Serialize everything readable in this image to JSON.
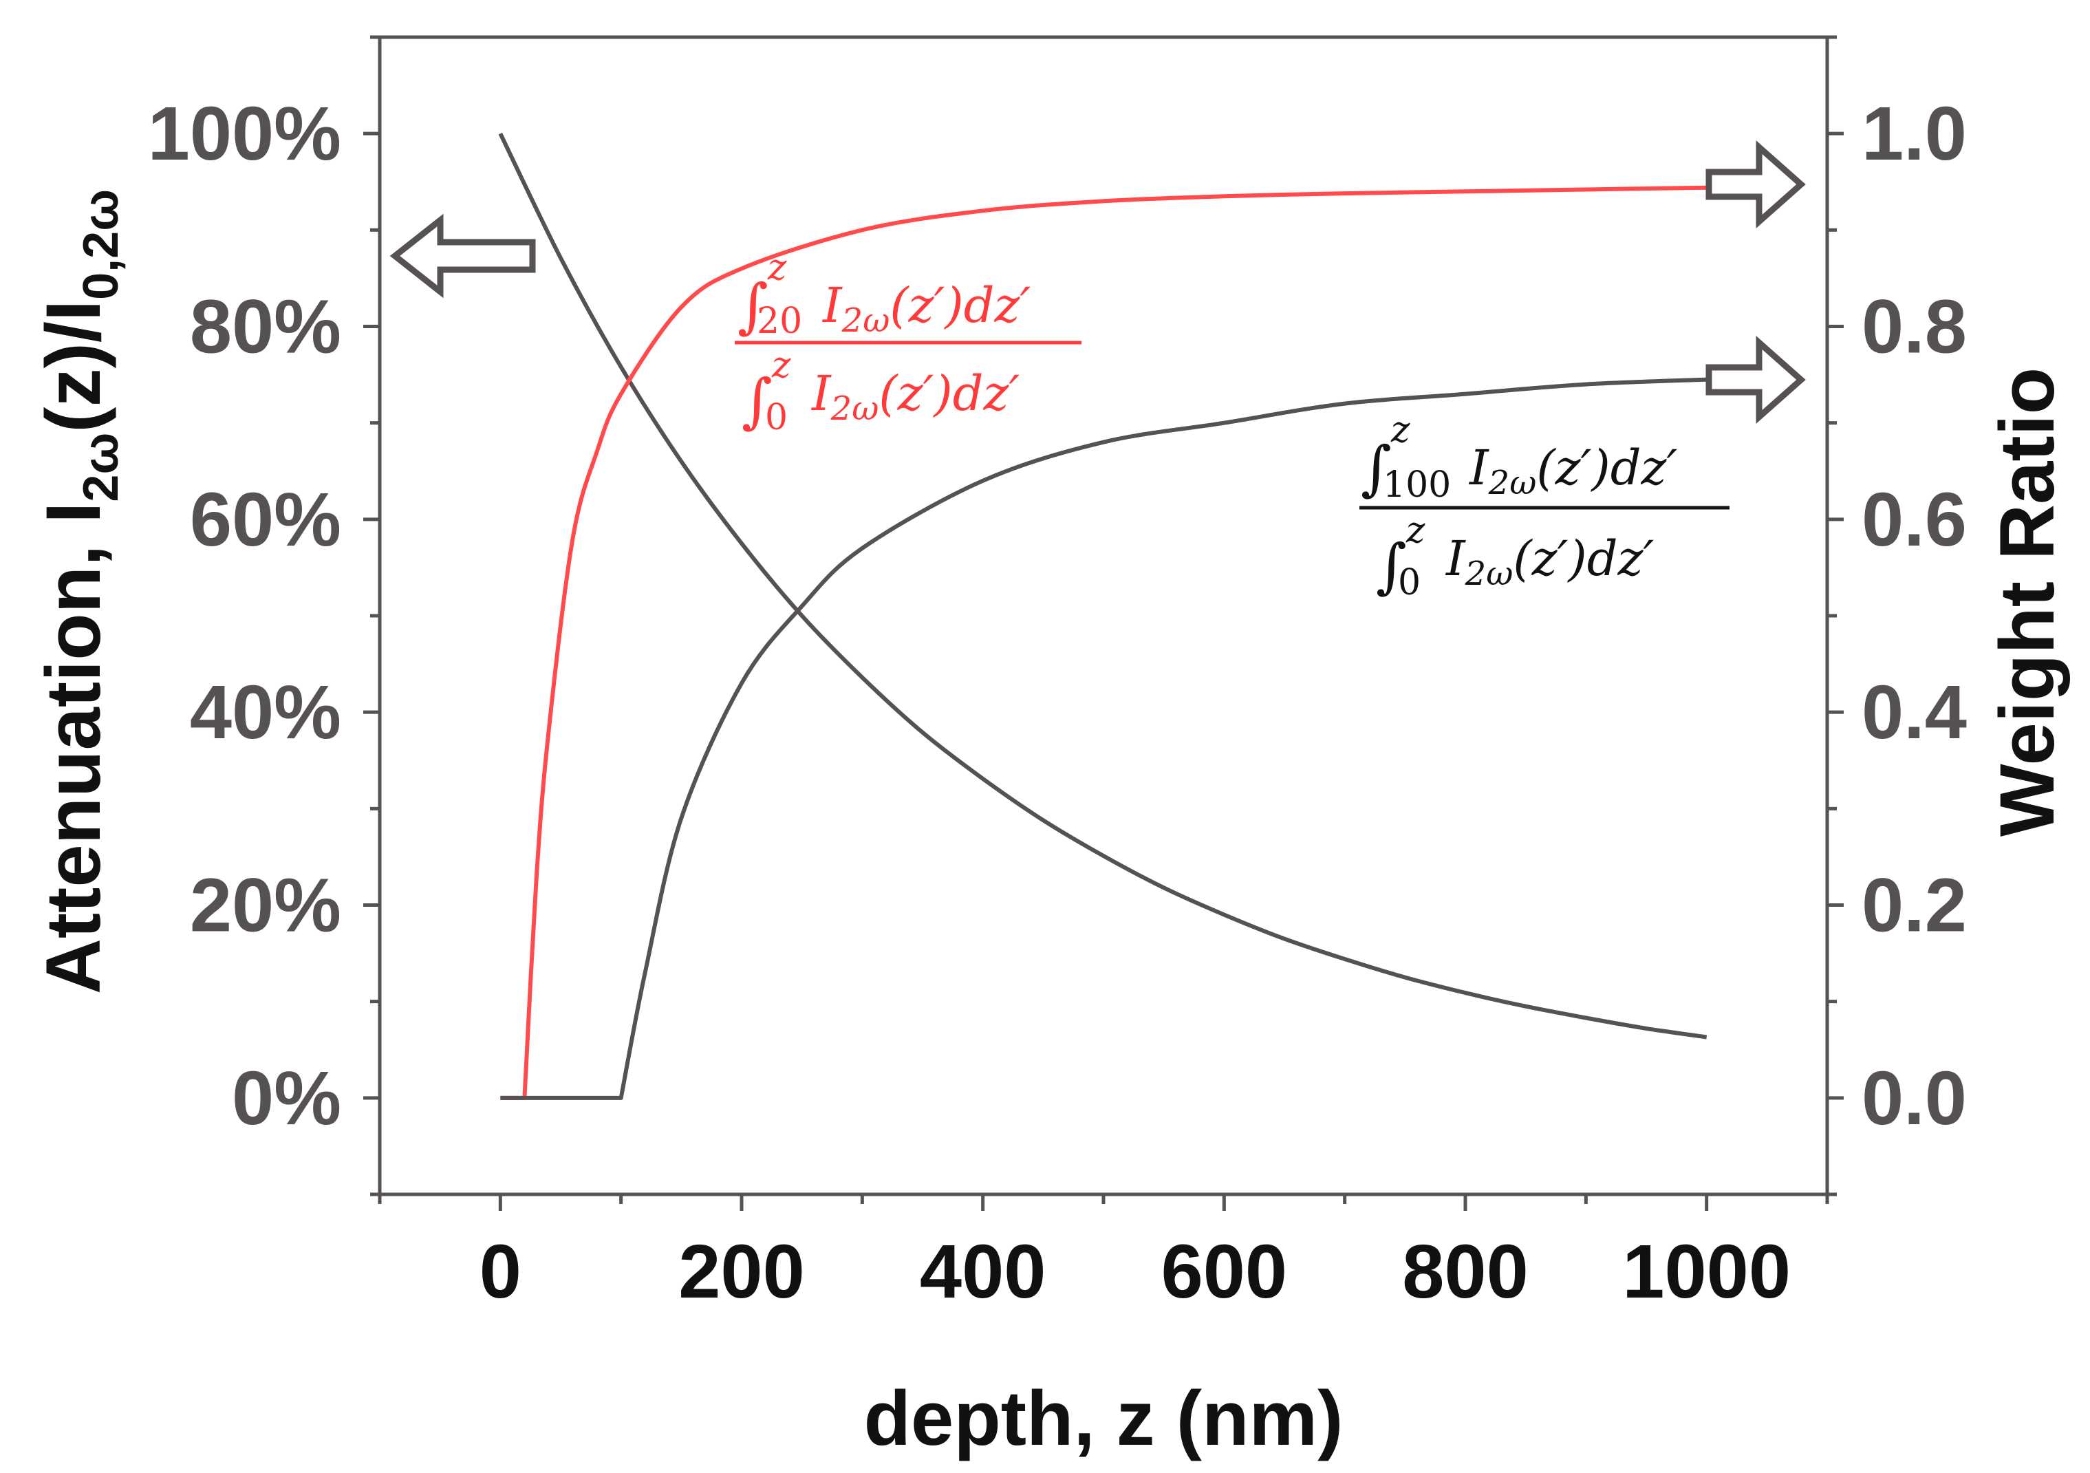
{
  "chart_data": {
    "type": "line",
    "x": {
      "label": "depth, z (nm)",
      "range": [
        -100,
        1100
      ],
      "ticks": [
        0,
        200,
        400,
        600,
        800,
        1000
      ],
      "tick_labels": [
        "0",
        "200",
        "400",
        "600",
        "800",
        "1000"
      ]
    },
    "y_left": {
      "label_main": "Attenuation, I",
      "label_sub": "2ω",
      "label_mid": "(z)/I",
      "label_sub2": "0,2ω",
      "range": [
        -10,
        110
      ],
      "ticks": [
        0,
        20,
        40,
        60,
        80,
        100
      ],
      "tick_labels": [
        "0%",
        "20%",
        "40%",
        "60%",
        "80%",
        "100%"
      ]
    },
    "y_right": {
      "label": "Weight Ratio",
      "range": [
        -0.1,
        1.1
      ],
      "ticks": [
        0.0,
        0.2,
        0.4,
        0.6,
        0.8,
        1.0
      ],
      "tick_labels": [
        "0.0",
        "0.2",
        "0.4",
        "0.6",
        "0.8",
        "1.0"
      ]
    },
    "series": [
      {
        "name": "attenuation",
        "axis": "left",
        "color": "#555155",
        "x": [
          0,
          50,
          100,
          150,
          200,
          250,
          300,
          350,
          400,
          450,
          500,
          550,
          600,
          650,
          700,
          750,
          800,
          850,
          900,
          950,
          1000
        ],
        "values": [
          100,
          87.1,
          75.8,
          66.0,
          57.5,
          50.0,
          43.6,
          37.9,
          33.1,
          28.8,
          25.1,
          21.8,
          19.0,
          16.5,
          14.4,
          12.5,
          10.9,
          9.5,
          8.3,
          7.2,
          6.3
        ]
      },
      {
        "name": "weight ratio from 20 nm",
        "axis": "right",
        "color": "#ff4b4b",
        "x": [
          0,
          20,
          30,
          40,
          60,
          80,
          100,
          150,
          200,
          300,
          400,
          500,
          600,
          700,
          800,
          900,
          1000
        ],
        "values": [
          0.0,
          0.0,
          0.23,
          0.38,
          0.58,
          0.67,
          0.73,
          0.82,
          0.86,
          0.9,
          0.92,
          0.93,
          0.935,
          0.938,
          0.94,
          0.942,
          0.944
        ]
      },
      {
        "name": "weight ratio from 100 nm",
        "axis": "right",
        "color": "#555155",
        "x": [
          0,
          100,
          120,
          150,
          200,
          250,
          300,
          400,
          500,
          600,
          700,
          800,
          900,
          1000
        ],
        "values": [
          0.0,
          0.0,
          0.13,
          0.29,
          0.43,
          0.51,
          0.57,
          0.64,
          0.68,
          0.7,
          0.72,
          0.73,
          0.74,
          0.745
        ]
      }
    ],
    "annotations": {
      "red_equation": {
        "num_lower": "20",
        "den_lower": "0",
        "upper": "z",
        "integrand": "I",
        "integrand_sub": "2ω",
        "integrand_rest": "(z′)dz′"
      },
      "gray_equation": {
        "num_lower": "100",
        "den_lower": "0",
        "upper": "z",
        "integrand": "I",
        "integrand_sub": "2ω",
        "integrand_rest": "(z′)dz′"
      },
      "arrows": [
        {
          "direction": "left",
          "points_to": "left axis",
          "series": "attenuation"
        },
        {
          "direction": "right",
          "points_to": "right axis",
          "series": "weight ratio from 20 nm"
        },
        {
          "direction": "right",
          "points_to": "right axis",
          "series": "weight ratio from 100 nm"
        }
      ]
    }
  }
}
